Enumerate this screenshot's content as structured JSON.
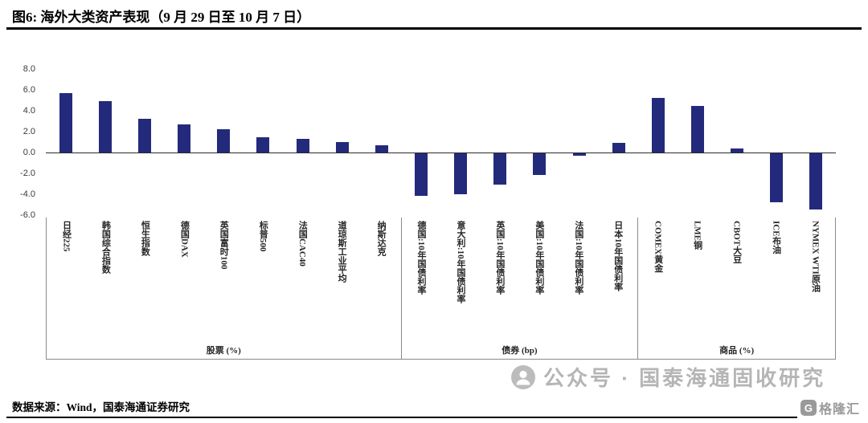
{
  "header": {
    "title": "图6: 海外大类资产表现（9 月 29 日至 10 月 7 日）"
  },
  "chart_data": {
    "type": "bar",
    "title": "海外大类资产表现（9月29日至10月7日）",
    "bar_color": "#232A7B",
    "ylim": [
      -6,
      8
    ],
    "yticks": [
      8,
      6,
      4,
      2,
      0,
      -2,
      -4,
      -6
    ],
    "grid": false,
    "legend": false,
    "groups": [
      {
        "name": "股票 (%)",
        "items": [
          {
            "label": "日经225",
            "value": 5.7
          },
          {
            "label": "韩国综合指数",
            "value": 4.9
          },
          {
            "label": "恒生指数",
            "value": 3.2
          },
          {
            "label": "德国DAX",
            "value": 2.7
          },
          {
            "label": "英国富时100",
            "value": 2.2
          },
          {
            "label": "标普500",
            "value": 1.5
          },
          {
            "label": "法国CAC40",
            "value": 1.3
          },
          {
            "label": "道琼斯工业平均",
            "value": 1.0
          },
          {
            "label": "纳斯达克",
            "value": 0.7
          }
        ]
      },
      {
        "name": "债券 (bp)",
        "items": [
          {
            "label": "德国:10年国债利率",
            "value": -4.1
          },
          {
            "label": "意大利:10年国债利率",
            "value": -3.9
          },
          {
            "label": "英国:10年国债利率",
            "value": -3.0
          },
          {
            "label": "美国:10年国债利率",
            "value": -2.1
          },
          {
            "label": "法国:10年国债利率",
            "value": -0.2
          },
          {
            "label": "日本10年国债利率",
            "value": 0.9
          }
        ]
      },
      {
        "name": "商品 (%)",
        "items": [
          {
            "label": "COMEX黄金",
            "value": 5.2
          },
          {
            "label": "LME铜",
            "value": 4.5
          },
          {
            "label": "CBOT大豆",
            "value": 0.4
          },
          {
            "label": "ICE布油",
            "value": -4.7
          },
          {
            "label": "NYMEX WTI原油",
            "value": -5.4
          }
        ]
      }
    ]
  },
  "watermark": {
    "text": "公众号 · 国泰海通固收研究",
    "icon": "wechat-official-account-icon"
  },
  "footer": {
    "source": "数据来源：Wind，国泰海通证券研究",
    "logo_icon": "G",
    "logo_text": "格隆汇"
  }
}
